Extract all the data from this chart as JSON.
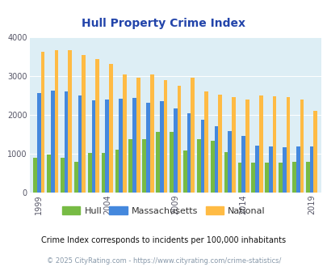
{
  "title": "Hull Property Crime Index",
  "subtitle": "Crime Index corresponds to incidents per 100,000 inhabitants",
  "footer": "© 2025 CityRating.com - https://www.cityrating.com/crime-statistics/",
  "hull_data": {
    "1999": 880,
    "2000": 970,
    "2001": 880,
    "2002": 790,
    "2003": 1020,
    "2004": 1010,
    "2005": 1100,
    "2006": 1370,
    "2007": 1370,
    "2008": 1550,
    "2009": 1560,
    "2010": 1070,
    "2011": 1380,
    "2012": 1320,
    "2013": 1040,
    "2014": 770,
    "2015": 760,
    "2016": 770,
    "2017": 760,
    "2018": 780,
    "2019": 780
  },
  "mass_data": {
    "1999": 2560,
    "2000": 2630,
    "2001": 2600,
    "2002": 2490,
    "2003": 2380,
    "2004": 2390,
    "2005": 2420,
    "2006": 2430,
    "2007": 2310,
    "2008": 2360,
    "2009": 2160,
    "2010": 2050,
    "2011": 1870,
    "2012": 1700,
    "2013": 1570,
    "2014": 1450,
    "2015": 1200,
    "2016": 1190,
    "2017": 1160,
    "2018": 1180,
    "2019": 1190
  },
  "natl_data": {
    "1999": 3620,
    "2000": 3680,
    "2001": 3660,
    "2002": 3540,
    "2003": 3440,
    "2004": 3320,
    "2005": 3040,
    "2006": 2960,
    "2007": 3040,
    "2008": 2890,
    "2009": 2750,
    "2010": 2960,
    "2011": 2600,
    "2012": 2510,
    "2013": 2460,
    "2014": 2390,
    "2015": 2500,
    "2016": 2480,
    "2017": 2450,
    "2018": 2390,
    "2019": 2100
  },
  "hull_color": "#77bb44",
  "mass_color": "#4488dd",
  "natl_color": "#ffbb44",
  "bg_color": "#ddeef5",
  "ylim": [
    0,
    4000
  ],
  "yticks": [
    0,
    1000,
    2000,
    3000,
    4000
  ],
  "xtick_years": [
    1999,
    2004,
    2009,
    2014,
    2019
  ],
  "title_color": "#2244aa",
  "subtitle_color": "#111111",
  "footer_color": "#8899aa",
  "title_fontsize": 10,
  "axis_fontsize": 7,
  "subtitle_fontsize": 7,
  "footer_fontsize": 6
}
